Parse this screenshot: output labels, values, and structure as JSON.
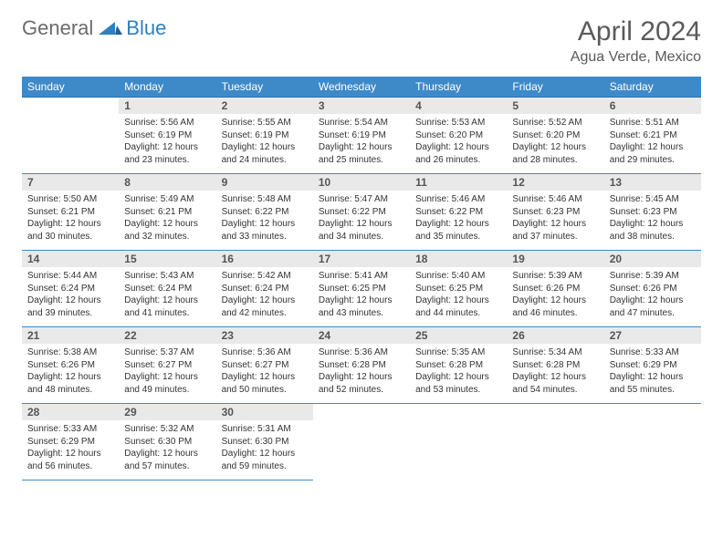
{
  "logo": {
    "general": "General",
    "blue": "Blue"
  },
  "title": "April 2024",
  "location": "Agua Verde, Mexico",
  "colors": {
    "header_bg": "#3e8ac9",
    "header_text": "#ffffff",
    "daynum_bg": "#e9e9e9",
    "border": "#3e8ac9",
    "logo_gray": "#6b6b6b",
    "logo_blue": "#2f7fc1"
  },
  "weekdays": [
    "Sunday",
    "Monday",
    "Tuesday",
    "Wednesday",
    "Thursday",
    "Friday",
    "Saturday"
  ],
  "weeks": [
    [
      null,
      {
        "n": 1,
        "sr": "5:56 AM",
        "ss": "6:19 PM",
        "dl": "12 hours and 23 minutes."
      },
      {
        "n": 2,
        "sr": "5:55 AM",
        "ss": "6:19 PM",
        "dl": "12 hours and 24 minutes."
      },
      {
        "n": 3,
        "sr": "5:54 AM",
        "ss": "6:19 PM",
        "dl": "12 hours and 25 minutes."
      },
      {
        "n": 4,
        "sr": "5:53 AM",
        "ss": "6:20 PM",
        "dl": "12 hours and 26 minutes."
      },
      {
        "n": 5,
        "sr": "5:52 AM",
        "ss": "6:20 PM",
        "dl": "12 hours and 28 minutes."
      },
      {
        "n": 6,
        "sr": "5:51 AM",
        "ss": "6:21 PM",
        "dl": "12 hours and 29 minutes."
      }
    ],
    [
      {
        "n": 7,
        "sr": "5:50 AM",
        "ss": "6:21 PM",
        "dl": "12 hours and 30 minutes."
      },
      {
        "n": 8,
        "sr": "5:49 AM",
        "ss": "6:21 PM",
        "dl": "12 hours and 32 minutes."
      },
      {
        "n": 9,
        "sr": "5:48 AM",
        "ss": "6:22 PM",
        "dl": "12 hours and 33 minutes."
      },
      {
        "n": 10,
        "sr": "5:47 AM",
        "ss": "6:22 PM",
        "dl": "12 hours and 34 minutes."
      },
      {
        "n": 11,
        "sr": "5:46 AM",
        "ss": "6:22 PM",
        "dl": "12 hours and 35 minutes."
      },
      {
        "n": 12,
        "sr": "5:46 AM",
        "ss": "6:23 PM",
        "dl": "12 hours and 37 minutes."
      },
      {
        "n": 13,
        "sr": "5:45 AM",
        "ss": "6:23 PM",
        "dl": "12 hours and 38 minutes."
      }
    ],
    [
      {
        "n": 14,
        "sr": "5:44 AM",
        "ss": "6:24 PM",
        "dl": "12 hours and 39 minutes."
      },
      {
        "n": 15,
        "sr": "5:43 AM",
        "ss": "6:24 PM",
        "dl": "12 hours and 41 minutes."
      },
      {
        "n": 16,
        "sr": "5:42 AM",
        "ss": "6:24 PM",
        "dl": "12 hours and 42 minutes."
      },
      {
        "n": 17,
        "sr": "5:41 AM",
        "ss": "6:25 PM",
        "dl": "12 hours and 43 minutes."
      },
      {
        "n": 18,
        "sr": "5:40 AM",
        "ss": "6:25 PM",
        "dl": "12 hours and 44 minutes."
      },
      {
        "n": 19,
        "sr": "5:39 AM",
        "ss": "6:26 PM",
        "dl": "12 hours and 46 minutes."
      },
      {
        "n": 20,
        "sr": "5:39 AM",
        "ss": "6:26 PM",
        "dl": "12 hours and 47 minutes."
      }
    ],
    [
      {
        "n": 21,
        "sr": "5:38 AM",
        "ss": "6:26 PM",
        "dl": "12 hours and 48 minutes."
      },
      {
        "n": 22,
        "sr": "5:37 AM",
        "ss": "6:27 PM",
        "dl": "12 hours and 49 minutes."
      },
      {
        "n": 23,
        "sr": "5:36 AM",
        "ss": "6:27 PM",
        "dl": "12 hours and 50 minutes."
      },
      {
        "n": 24,
        "sr": "5:36 AM",
        "ss": "6:28 PM",
        "dl": "12 hours and 52 minutes."
      },
      {
        "n": 25,
        "sr": "5:35 AM",
        "ss": "6:28 PM",
        "dl": "12 hours and 53 minutes."
      },
      {
        "n": 26,
        "sr": "5:34 AM",
        "ss": "6:28 PM",
        "dl": "12 hours and 54 minutes."
      },
      {
        "n": 27,
        "sr": "5:33 AM",
        "ss": "6:29 PM",
        "dl": "12 hours and 55 minutes."
      }
    ],
    [
      {
        "n": 28,
        "sr": "5:33 AM",
        "ss": "6:29 PM",
        "dl": "12 hours and 56 minutes."
      },
      {
        "n": 29,
        "sr": "5:32 AM",
        "ss": "6:30 PM",
        "dl": "12 hours and 57 minutes."
      },
      {
        "n": 30,
        "sr": "5:31 AM",
        "ss": "6:30 PM",
        "dl": "12 hours and 59 minutes."
      },
      null,
      null,
      null,
      null
    ]
  ],
  "labels": {
    "sunrise": "Sunrise:",
    "sunset": "Sunset:",
    "daylight": "Daylight:"
  }
}
